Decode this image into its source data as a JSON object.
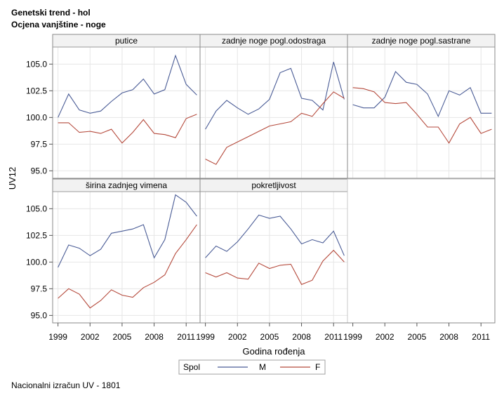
{
  "titles": {
    "line1": "Genetski trend - hol",
    "line2": "Ocjena vanjštine - noge"
  },
  "footnote": "Nacionalni izračun UV - 1801",
  "chart_data": {
    "type": "line",
    "layout": "panel grid 3x2",
    "xlabel": "Godina rođenja",
    "ylabel": "UV12",
    "xlim": [
      1998.5,
      2012.3
    ],
    "ylim": [
      94.3,
      106.6
    ],
    "xticks": [
      1999,
      2002,
      2005,
      2008,
      2011
    ],
    "yticks": [
      95.0,
      97.5,
      100.0,
      102.5,
      105.0
    ],
    "ytick_labels": [
      "95.0",
      "97.5",
      "100.0",
      "102.5",
      "105.0"
    ],
    "grid": true,
    "legend": {
      "title": "Spol",
      "position": "bottom",
      "entries": [
        {
          "label": "M",
          "color": "#4a5c96"
        },
        {
          "label": "F",
          "color": "#b54a3c"
        }
      ]
    },
    "x": [
      1999,
      2000,
      2001,
      2002,
      2003,
      2004,
      2005,
      2006,
      2007,
      2008,
      2009,
      2010,
      2011,
      2012
    ],
    "panels": [
      {
        "title": "putice",
        "series": [
          {
            "name": "M",
            "values": [
              100.0,
              102.2,
              100.7,
              100.4,
              100.6,
              101.5,
              102.3,
              102.6,
              103.6,
              102.2,
              102.6,
              105.8,
              103.1,
              102.1
            ]
          },
          {
            "name": "F",
            "values": [
              99.5,
              99.5,
              98.6,
              98.7,
              98.5,
              98.9,
              97.6,
              98.6,
              99.8,
              98.5,
              98.4,
              98.1,
              99.9,
              100.3
            ]
          }
        ]
      },
      {
        "title": "zadnje noge pogl.odostraga",
        "series": [
          {
            "name": "M",
            "values": [
              98.9,
              100.6,
              101.6,
              100.9,
              100.3,
              100.8,
              101.7,
              104.2,
              104.6,
              101.8,
              101.6,
              100.7,
              105.2,
              101.7
            ]
          },
          {
            "name": "F",
            "values": [
              96.1,
              95.6,
              97.2,
              97.7,
              98.2,
              98.7,
              99.2,
              99.4,
              99.6,
              100.4,
              100.1,
              101.3,
              102.4,
              101.8
            ]
          }
        ]
      },
      {
        "title": "zadnje noge pogl.sastrane",
        "series": [
          {
            "name": "M",
            "values": [
              101.2,
              100.9,
              100.9,
              101.9,
              104.3,
              103.3,
              103.1,
              102.2,
              100.1,
              102.5,
              102.1,
              102.8,
              100.4,
              100.4
            ]
          },
          {
            "name": "F",
            "values": [
              102.8,
              102.7,
              102.4,
              101.4,
              101.3,
              101.4,
              100.3,
              99.1,
              99.1,
              97.6,
              99.4,
              100.0,
              98.5,
              98.9
            ]
          }
        ]
      },
      {
        "title": "širina zadnjeg vimena",
        "series": [
          {
            "name": "M",
            "values": [
              99.5,
              101.6,
              101.3,
              100.6,
              101.2,
              102.7,
              102.9,
              103.1,
              103.5,
              100.4,
              102.1,
              106.3,
              105.6,
              104.3
            ]
          },
          {
            "name": "F",
            "values": [
              96.6,
              97.5,
              97.0,
              95.7,
              96.4,
              97.4,
              96.9,
              96.7,
              97.6,
              98.1,
              98.8,
              100.8,
              102.1,
              103.5
            ]
          }
        ]
      },
      {
        "title": "pokretljivost",
        "series": [
          {
            "name": "M",
            "values": [
              100.4,
              101.5,
              101.0,
              101.9,
              103.1,
              104.4,
              104.1,
              104.3,
              103.1,
              101.7,
              102.1,
              101.8,
              102.9,
              100.6
            ]
          },
          {
            "name": "F",
            "values": [
              99.0,
              98.6,
              99.0,
              98.5,
              98.4,
              99.9,
              99.4,
              99.7,
              99.8,
              97.9,
              98.3,
              100.1,
              101.1,
              100.0
            ]
          }
        ]
      }
    ]
  }
}
